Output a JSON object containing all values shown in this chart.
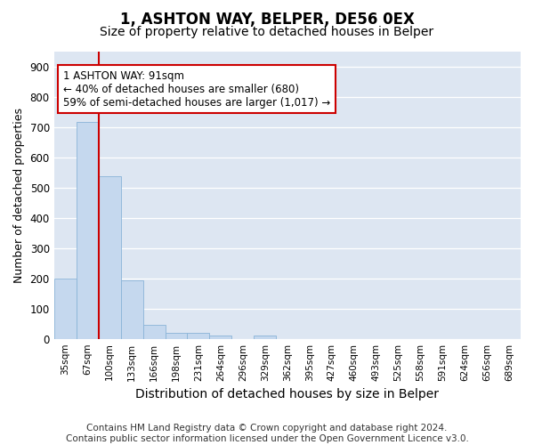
{
  "title": "1, ASHTON WAY, BELPER, DE56 0EX",
  "subtitle": "Size of property relative to detached houses in Belper",
  "xlabel": "Distribution of detached houses by size in Belper",
  "ylabel": "Number of detached properties",
  "categories": [
    "35sqm",
    "67sqm",
    "100sqm",
    "133sqm",
    "166sqm",
    "198sqm",
    "231sqm",
    "264sqm",
    "296sqm",
    "329sqm",
    "362sqm",
    "395sqm",
    "427sqm",
    "460sqm",
    "493sqm",
    "525sqm",
    "558sqm",
    "591sqm",
    "624sqm",
    "656sqm",
    "689sqm"
  ],
  "values": [
    200,
    715,
    537,
    193,
    45,
    20,
    20,
    12,
    0,
    12,
    0,
    0,
    0,
    0,
    0,
    0,
    0,
    0,
    0,
    0,
    0
  ],
  "bar_color": "#c5d8ee",
  "bar_edge_color": "#8ab4d8",
  "vline_color": "#cc0000",
  "vline_x": 1.5,
  "annotation_text": "1 ASHTON WAY: 91sqm\n← 40% of detached houses are smaller (680)\n59% of semi-detached houses are larger (1,017) →",
  "annotation_box_color": "#cc0000",
  "annotation_text_color": "#000000",
  "ylim": [
    0,
    950
  ],
  "yticks": [
    0,
    100,
    200,
    300,
    400,
    500,
    600,
    700,
    800,
    900
  ],
  "background_color": "#dde6f2",
  "footer": "Contains HM Land Registry data © Crown copyright and database right 2024.\nContains public sector information licensed under the Open Government Licence v3.0.",
  "title_fontsize": 12,
  "subtitle_fontsize": 10,
  "footer_fontsize": 7.5,
  "xlabel_fontsize": 10,
  "ylabel_fontsize": 9
}
